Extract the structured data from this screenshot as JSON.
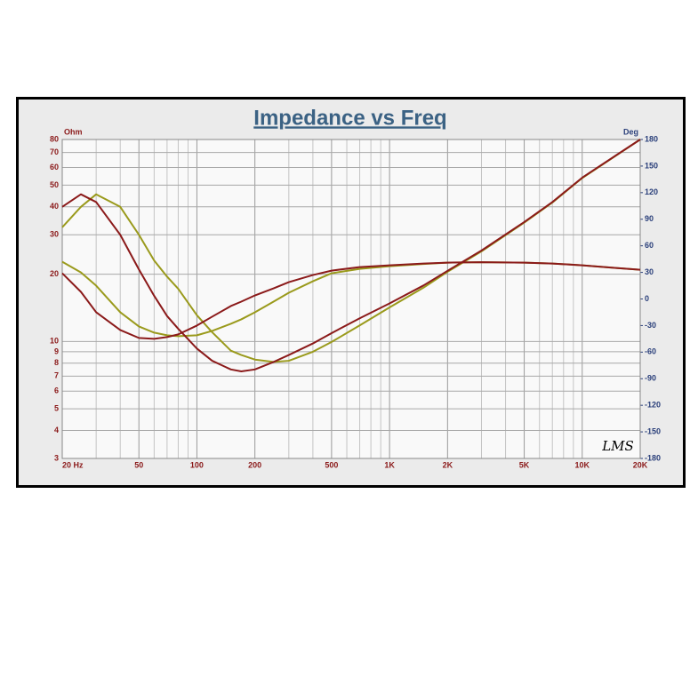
{
  "chart_data": {
    "type": "line",
    "title": "Impedance vs Freq",
    "y_label": "Ohm",
    "y2_label": "Deg",
    "watermark": "LMS",
    "xscale": "log",
    "yscale": "log",
    "grid": true,
    "x": [
      20,
      25,
      30,
      40,
      50,
      60,
      70,
      80,
      100,
      120,
      150,
      170,
      200,
      250,
      300,
      400,
      500,
      700,
      1000,
      1500,
      2000,
      3000,
      5000,
      7000,
      10000,
      15000,
      20000
    ],
    "xlim": [
      20,
      20000
    ],
    "xticks": [
      {
        "value": 20,
        "label": "20 Hz"
      },
      50,
      100,
      200,
      500,
      {
        "value": 1000,
        "label": "1K"
      },
      {
        "value": 2000,
        "label": "2K"
      },
      {
        "value": 5000,
        "label": "5K"
      },
      {
        "value": 10000,
        "label": "10K"
      },
      {
        "value": 20000,
        "label": "20K"
      }
    ],
    "xgrid_minor": [
      30,
      40,
      60,
      70,
      80,
      90,
      300,
      400,
      600,
      700,
      800,
      900,
      3000,
      4000,
      6000,
      7000,
      8000,
      9000
    ],
    "ylim": [
      3,
      80
    ],
    "yticks": [
      3,
      4,
      5,
      6,
      7,
      8,
      9,
      10,
      20,
      30,
      40,
      50,
      60,
      70,
      80
    ],
    "y2lim": [
      -180,
      180
    ],
    "y2ticks": [
      180,
      150,
      120,
      90,
      60,
      30,
      0,
      -30,
      -60,
      -90,
      -120,
      -150,
      -180
    ],
    "series": [
      {
        "color": "#9a9a1c",
        "values": [
          32.4,
          40,
          45.5,
          40,
          30,
          23,
          19.5,
          17.2,
          13.1,
          11,
          9.1,
          8.7,
          8.3,
          8.1,
          8.2,
          9,
          9.95,
          11.8,
          14.2,
          17.4,
          20.5,
          25.3,
          34,
          41.8,
          53.8,
          67.8,
          80
        ]
      },
      {
        "color": "#9a9a1c",
        "axis": "y2",
        "values": [
          42,
          30,
          15,
          -15,
          -31,
          -38,
          -41,
          -42,
          -41,
          -36,
          -28,
          -23,
          -15,
          -3,
          7,
          20,
          29,
          34,
          37,
          39.5,
          41,
          41.5,
          41,
          40,
          38,
          35,
          33
        ]
      },
      {
        "color": "#8b1a1a",
        "values": [
          40,
          45.5,
          42,
          30,
          21,
          16,
          13,
          11.4,
          9.3,
          8.2,
          7.5,
          7.35,
          7.5,
          8.1,
          8.7,
          9.8,
          10.9,
          12.7,
          14.8,
          17.8,
          20.7,
          25.5,
          34.2,
          42,
          54,
          68,
          80
        ]
      },
      {
        "color": "#8b1a1a",
        "axis": "y2",
        "values": [
          29,
          8,
          -15,
          -35,
          -44,
          -45,
          -43,
          -40,
          -30,
          -20,
          -8,
          -3,
          4,
          12,
          19,
          27,
          32,
          36,
          38,
          40,
          41,
          41.5,
          41,
          40,
          38,
          35,
          33
        ]
      }
    ]
  }
}
